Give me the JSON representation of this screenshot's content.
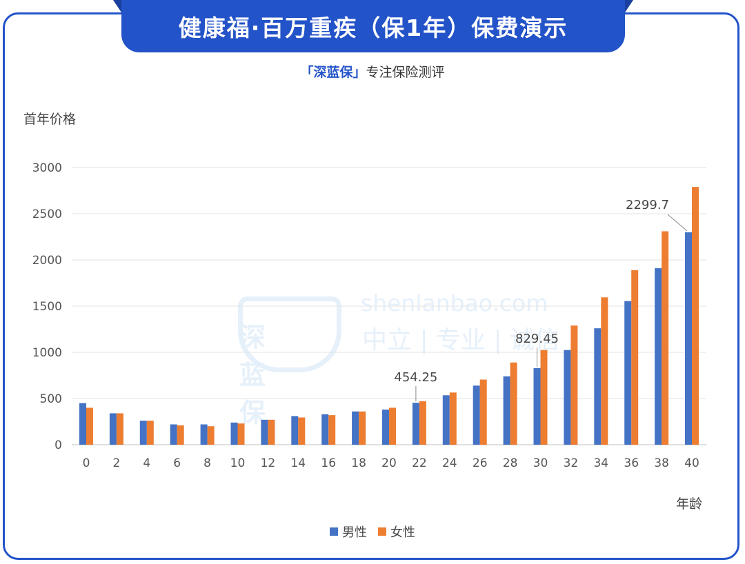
{
  "header": {
    "title": "健康福·百万重疾（保1年）保费演示",
    "subtitle_brand": "「深蓝保」",
    "subtitle_rest": "专注保险测评"
  },
  "watermark": {
    "logo_text": "深蓝保",
    "url": "shenlanbao.com",
    "slogan": "中立 | 专业 | 诚信"
  },
  "colors": {
    "accent": "#2353c8",
    "male": "#4472c4",
    "female": "#ed7d31"
  },
  "chart_data": {
    "type": "bar",
    "title": "",
    "ylabel": "首年价格",
    "xlabel": "年龄",
    "ylim": [
      0,
      3000
    ],
    "yticks": [
      "0",
      "500",
      "1000",
      "1500",
      "2000",
      "2500",
      "3000"
    ],
    "grid": true,
    "legend_position": "bottom",
    "categories": [
      "0",
      "2",
      "4",
      "6",
      "8",
      "10",
      "12",
      "14",
      "16",
      "18",
      "20",
      "22",
      "24",
      "26",
      "28",
      "30",
      "32",
      "34",
      "36",
      "38",
      "40"
    ],
    "series": [
      {
        "name": "男性",
        "values": [
          450,
          340,
          260,
          220,
          220,
          240,
          270,
          310,
          330,
          360,
          380,
          454.25,
          535,
          640,
          740,
          829.45,
          1025,
          1260,
          1555,
          1910,
          2299.7
        ]
      },
      {
        "name": "女性",
        "values": [
          400,
          340,
          260,
          210,
          200,
          230,
          270,
          295,
          320,
          360,
          400,
          470,
          565,
          705,
          890,
          1025,
          1290,
          1595,
          1890,
          2310,
          2790
        ]
      }
    ],
    "annotations": [
      {
        "series": 0,
        "index": 11,
        "text": "454.25"
      },
      {
        "series": 0,
        "index": 15,
        "text": "829.45"
      },
      {
        "series": 0,
        "index": 20,
        "text": "2299.7"
      }
    ]
  }
}
